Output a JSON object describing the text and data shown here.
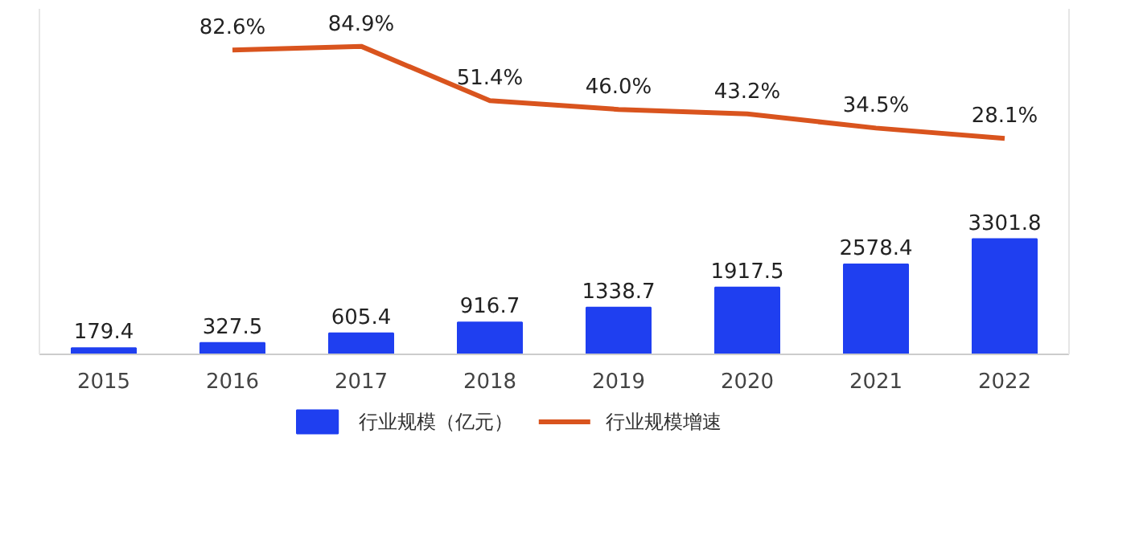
{
  "chart_data": {
    "type": "bar",
    "categories": [
      "2015",
      "2016",
      "2017",
      "2018",
      "2019",
      "2020",
      "2021",
      "2022"
    ],
    "series": [
      {
        "name": "行业规模（亿元）",
        "type": "bar",
        "color": "#1f3ff0",
        "values": [
          179.4,
          327.5,
          605.4,
          916.7,
          1338.7,
          1917.5,
          2578.4,
          3301.8
        ],
        "value_labels": [
          "179.4",
          "327.5",
          "605.4",
          "916.7",
          "1338.7",
          "1917.5",
          "2578.4",
          "3301.8"
        ]
      },
      {
        "name": "行业规模增速",
        "type": "line",
        "axis": "y2",
        "color": "#d9541e",
        "values": [
          null,
          82.6,
          84.9,
          51.4,
          46.0,
          43.2,
          34.5,
          28.1
        ],
        "value_labels": [
          null,
          "82.6%",
          "84.9%",
          "51.4%",
          "46.0%",
          "43.2%",
          "34.5%",
          "28.1%"
        ]
      }
    ],
    "ylim": [
      0,
      9900
    ],
    "y2lim": [
      -105,
      108
    ],
    "legend": "bottom",
    "grid": false
  }
}
